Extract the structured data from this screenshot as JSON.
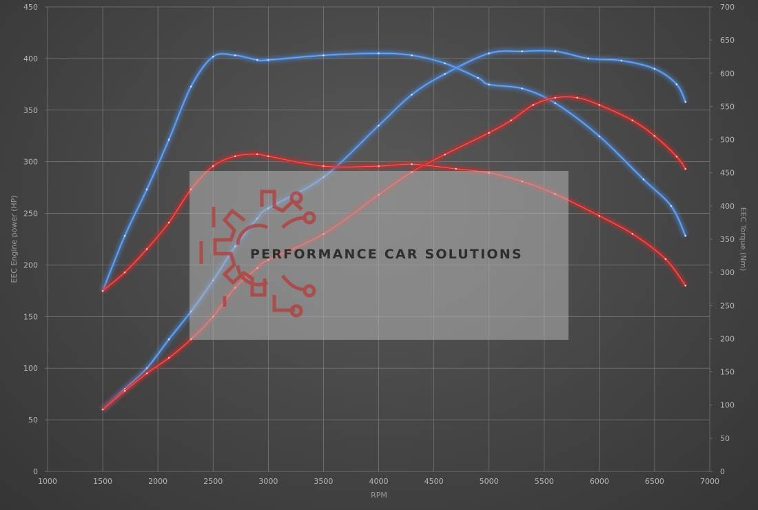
{
  "chart_data": {
    "type": "line",
    "xlabel": "RPM",
    "ylabel_left": "EEC Engine power (HP)",
    "ylabel_right": "EEC Torque (Nm)",
    "xlim": [
      1000,
      7000
    ],
    "ylim_left": [
      0,
      450
    ],
    "ylim_right": [
      0,
      700
    ],
    "x_ticks": [
      1000,
      1500,
      2000,
      2500,
      3000,
      3500,
      4000,
      4500,
      5000,
      5500,
      6000,
      6500,
      7000
    ],
    "y_ticks_left": [
      0,
      50,
      100,
      150,
      200,
      250,
      300,
      350,
      400,
      450
    ],
    "y_ticks_right": [
      0,
      50,
      100,
      150,
      200,
      250,
      300,
      350,
      400,
      450,
      500,
      550,
      600,
      650,
      700
    ],
    "grid": true,
    "series": [
      {
        "color": "#4a86d6",
        "axis": "left",
        "x": [
          1500,
          1700,
          1900,
          2100,
          2300,
          2500,
          2700,
          2900,
          3000,
          3500,
          4000,
          4300,
          4600,
          5000,
          5300,
          5600,
          5900,
          6200,
          6500,
          6700,
          6780
        ],
        "y": [
          60,
          80,
          100,
          128,
          155,
          185,
          218,
          245,
          255,
          285,
          335,
          365,
          385,
          405,
          407,
          407,
          400,
          398,
          390,
          375,
          358
        ]
      },
      {
        "color": "#4a86d6",
        "axis": "right",
        "x": [
          1500,
          1700,
          1900,
          2100,
          2300,
          2500,
          2700,
          2900,
          3000,
          3500,
          4000,
          4300,
          4600,
          4900,
          5000,
          5300,
          5600,
          6000,
          6400,
          6650,
          6780
        ],
        "y": [
          272,
          355,
          425,
          500,
          580,
          625,
          627,
          620,
          620,
          627,
          630,
          627,
          615,
          593,
          583,
          577,
          555,
          505,
          440,
          400,
          355
        ]
      },
      {
        "color": "#d42a2a",
        "axis": "left",
        "x": [
          1500,
          1700,
          1900,
          2100,
          2300,
          2500,
          2700,
          2900,
          3000,
          3500,
          4000,
          4300,
          4600,
          5000,
          5200,
          5400,
          5600,
          5800,
          6000,
          6300,
          6500,
          6700,
          6780
        ],
        "y": [
          60,
          78,
          95,
          110,
          128,
          150,
          178,
          197,
          205,
          230,
          268,
          290,
          307,
          328,
          340,
          355,
          362,
          362,
          355,
          340,
          325,
          305,
          293
        ]
      },
      {
        "color": "#d42a2a",
        "axis": "right",
        "x": [
          1500,
          1700,
          1900,
          2100,
          2300,
          2500,
          2700,
          2900,
          3000,
          3500,
          4000,
          4300,
          4700,
          5000,
          5300,
          5600,
          6000,
          6300,
          6600,
          6780
        ],
        "y": [
          272,
          300,
          335,
          375,
          425,
          460,
          475,
          478,
          475,
          460,
          460,
          463,
          456,
          450,
          437,
          418,
          385,
          358,
          320,
          280
        ]
      }
    ]
  },
  "watermark": {
    "text": "PERFORMANCE CAR SOLUTIONS"
  }
}
